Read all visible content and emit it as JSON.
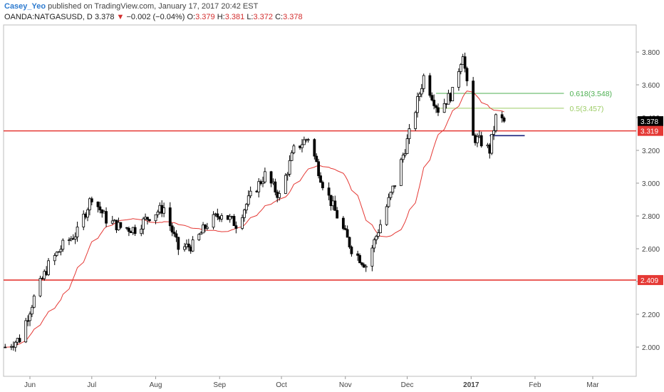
{
  "header": {
    "user": "Casey_Yeo",
    "published": "published on TradingView.com, January 17, 2017 20:42 EST",
    "symbol": "OANDA:NATGASUSD, D",
    "last": "3.378",
    "change_arrow": "▼",
    "change": "−0.002 (−0.04%)",
    "o_label": "O:",
    "o": "3.379",
    "h_label": "H:",
    "h": "3.381",
    "l_label": "L:",
    "l": "3.372",
    "c_label": "C:",
    "c": "3.378"
  },
  "colors": {
    "up": "#ffffff",
    "down": "#000000",
    "ma": "#e53935",
    "level": "#e53935",
    "fib618": "#4caf50",
    "fib05": "#9ccc65",
    "blue": "#1a237e"
  },
  "chart_data": {
    "type": "candlestick",
    "x_ticks": [
      "Jun",
      "Jul",
      "Aug",
      "Sep",
      "Oct",
      "Nov",
      "Dec",
      "2017",
      "Feb",
      "Mar"
    ],
    "y_ticks": [
      "2.000",
      "2.200",
      "2.400",
      "2.600",
      "2.800",
      "3.000",
      "3.200",
      "3.400",
      "3.600",
      "3.800"
    ],
    "ylim": [
      1.87,
      3.88
    ],
    "grid": false,
    "price_labels": {
      "last": "3.378",
      "support_high": "3.319",
      "support_low": "2.409"
    },
    "horizontal_levels": [
      3.319,
      2.409
    ],
    "fib_levels": [
      {
        "label": "0.618(3.548)",
        "value": 3.548
      },
      {
        "label": "0.5(3.457)",
        "value": 3.457
      }
    ],
    "blue_level": 3.29,
    "anchors": [
      [
        "2016-05-20",
        2.0
      ],
      [
        "2016-05-27",
        2.05
      ],
      [
        "2016-06-03",
        2.3
      ],
      [
        "2016-06-10",
        2.5
      ],
      [
        "2016-06-17",
        2.62
      ],
      [
        "2016-06-24",
        2.7
      ],
      [
        "2016-07-01",
        2.92
      ],
      [
        "2016-07-08",
        2.78
      ],
      [
        "2016-07-15",
        2.73
      ],
      [
        "2016-07-22",
        2.72
      ],
      [
        "2016-07-29",
        2.8
      ],
      [
        "2016-08-05",
        2.85
      ],
      [
        "2016-08-12",
        2.6
      ],
      [
        "2016-08-19",
        2.62
      ],
      [
        "2016-08-26",
        2.75
      ],
      [
        "2016-09-02",
        2.82
      ],
      [
        "2016-09-09",
        2.75
      ],
      [
        "2016-09-16",
        2.92
      ],
      [
        "2016-09-23",
        3.05
      ],
      [
        "2016-09-30",
        2.92
      ],
      [
        "2016-10-07",
        3.2
      ],
      [
        "2016-10-14",
        3.28
      ],
      [
        "2016-10-21",
        3.0
      ],
      [
        "2016-10-28",
        2.8
      ],
      [
        "2016-11-04",
        2.6
      ],
      [
        "2016-11-11",
        2.5
      ],
      [
        "2016-11-18",
        2.75
      ],
      [
        "2016-11-25",
        3.0
      ],
      [
        "2016-12-02",
        3.3
      ],
      [
        "2016-12-09",
        3.65
      ],
      [
        "2016-12-16",
        3.45
      ],
      [
        "2016-12-23",
        3.55
      ],
      [
        "2016-12-28",
        3.8
      ],
      [
        "2017-01-02",
        3.28
      ],
      [
        "2017-01-06",
        3.25
      ],
      [
        "2017-01-10",
        3.2
      ],
      [
        "2017-01-13",
        3.4
      ],
      [
        "2017-01-17",
        3.378
      ]
    ]
  }
}
